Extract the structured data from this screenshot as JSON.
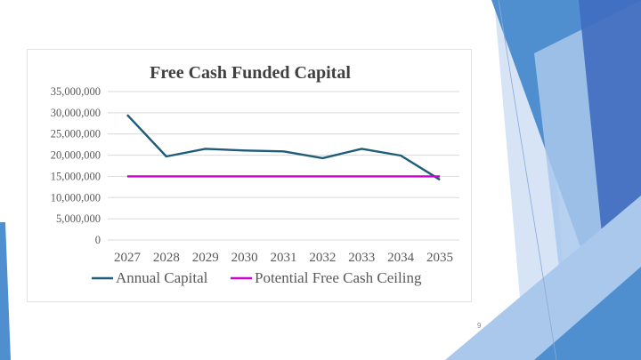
{
  "slide": {
    "page_number": "9",
    "colors": {
      "background": "#ffffff",
      "decor_dark": "#3f6bbf",
      "decor_mid": "#4f8fd0",
      "decor_light": "#a9c8ec",
      "decor_pale": "#d6e4f5"
    }
  },
  "chart_data": {
    "type": "line",
    "title": "Free Cash Funded Capital",
    "xlabel": "",
    "ylabel": "",
    "categories": [
      "2027",
      "2028",
      "2029",
      "2030",
      "2031",
      "2032",
      "2033",
      "2034",
      "2035"
    ],
    "ylim": [
      0,
      35000000
    ],
    "yticks": [
      0,
      5000000,
      10000000,
      15000000,
      20000000,
      25000000,
      30000000,
      35000000
    ],
    "ytick_labels": [
      "0",
      "5,000,000",
      "10,000,000",
      "15,000,000",
      "20,000,000",
      "25,000,000",
      "30,000,000",
      "35,000,000"
    ],
    "grid": true,
    "legend_position": "bottom",
    "series": [
      {
        "name": "Annual Capital",
        "color": "#1f5c7a",
        "values": [
          29500000,
          19700000,
          21500000,
          21100000,
          20900000,
          19300000,
          21500000,
          19900000,
          14200000
        ]
      },
      {
        "name": "Potential Free Cash Ceiling",
        "color": "#cc00cc",
        "values": [
          15000000,
          15000000,
          15000000,
          15000000,
          15000000,
          15000000,
          15000000,
          15000000,
          15000000
        ]
      }
    ]
  }
}
